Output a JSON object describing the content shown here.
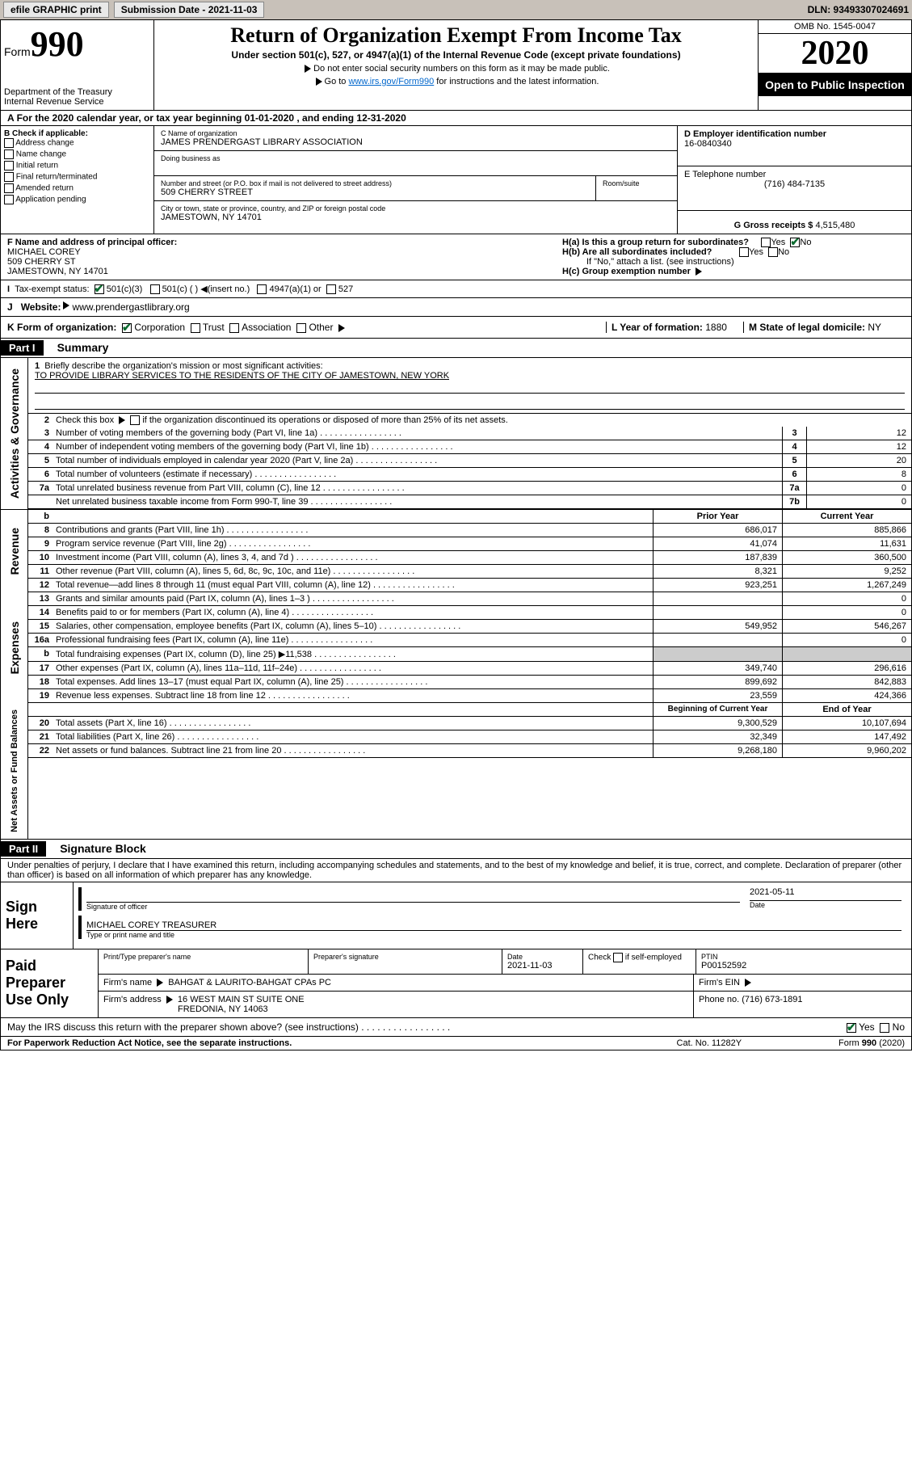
{
  "topbar": {
    "efile": "efile GRAPHIC print",
    "submission_label": "Submission Date - 2021-11-03",
    "dln": "DLN: 93493307024691"
  },
  "header": {
    "form_word": "Form",
    "form_num": "990",
    "dept": "Department of the Treasury\nInternal Revenue Service",
    "title": "Return of Organization Exempt From Income Tax",
    "subtitle": "Under section 501(c), 527, or 4947(a)(1) of the Internal Revenue Code (except private foundations)",
    "hint1": "Do not enter social security numbers on this form as it may be made public.",
    "hint2_pre": "Go to ",
    "hint2_link": "www.irs.gov/Form990",
    "hint2_post": " for instructions and the latest information.",
    "omb": "OMB No. 1545-0047",
    "year": "2020",
    "open": "Open to Public Inspection"
  },
  "row_a": "For the 2020 calendar year, or tax year beginning 01-01-2020    , and ending 12-31-2020",
  "b": {
    "lbl": "B Check if applicable:",
    "items": [
      "Address change",
      "Name change",
      "Initial return",
      "Final return/terminated",
      "Amended return",
      "Application pending"
    ]
  },
  "c": {
    "name_lbl": "C Name of organization",
    "name": "JAMES PRENDERGAST LIBRARY ASSOCIATION",
    "dba_lbl": "Doing business as",
    "street_lbl": "Number and street (or P.O. box if mail is not delivered to street address)",
    "street": "509 CHERRY STREET",
    "room_lbl": "Room/suite",
    "city_lbl": "City or town, state or province, country, and ZIP or foreign postal code",
    "city": "JAMESTOWN, NY  14701"
  },
  "d": {
    "lbl": "D Employer identification number",
    "val": "16-0840340"
  },
  "e": {
    "lbl": "E Telephone number",
    "val": "(716) 484-7135"
  },
  "g": {
    "lbl": "G Gross receipts $ ",
    "val": "4,515,480"
  },
  "f": {
    "lbl": "F  Name and address of principal officer:",
    "name": "MICHAEL COREY",
    "street": "509 CHERRY ST",
    "city": "JAMESTOWN, NY  14701"
  },
  "h": {
    "a": "H(a)  Is this a group return for subordinates?",
    "b": "H(b)  Are all subordinates included?",
    "note": "If \"No,\" attach a list. (see instructions)",
    "c": "H(c)  Group exemption number"
  },
  "i": {
    "lbl": "Tax-exempt status:",
    "c501c3": "501(c)(3)",
    "c501c": "501(c) (   )",
    "insert": "(insert no.)",
    "c4947": "4947(a)(1) or",
    "c527": "527"
  },
  "j": {
    "lbl": "Website:",
    "val": "www.prendergastlibrary.org"
  },
  "k": {
    "lbl": "K Form of organization:",
    "corp": "Corporation",
    "trust": "Trust",
    "assoc": "Association",
    "other": "Other"
  },
  "l": {
    "lbl": "L Year of formation: ",
    "val": "1880"
  },
  "m": {
    "lbl": "M State of legal domicile: ",
    "val": "NY"
  },
  "part1": {
    "hdr": "Part I",
    "title": "Summary",
    "q1": "Briefly describe the organization's mission or most significant activities:",
    "q1v": "TO PROVIDE LIBRARY SERVICES TO THE RESIDENTS OF THE CITY OF JAMESTOWN, NEW YORK",
    "q2": "Check this box      if the organization discontinued its operations or disposed of more than 25% of its net assets.",
    "lines_ag": [
      {
        "n": "3",
        "t": "Number of voting members of the governing body (Part VI, line 1a)",
        "b": "3",
        "v": "12"
      },
      {
        "n": "4",
        "t": "Number of independent voting members of the governing body (Part VI, line 1b)",
        "b": "4",
        "v": "12"
      },
      {
        "n": "5",
        "t": "Total number of individuals employed in calendar year 2020 (Part V, line 2a)",
        "b": "5",
        "v": "20"
      },
      {
        "n": "6",
        "t": "Total number of volunteers (estimate if necessary)",
        "b": "6",
        "v": "8"
      },
      {
        "n": "7a",
        "t": "Total unrelated business revenue from Part VIII, column (C), line 12",
        "b": "7a",
        "v": "0"
      },
      {
        "n": "",
        "t": "Net unrelated business taxable income from Form 990-T, line 39",
        "b": "7b",
        "v": "0"
      }
    ],
    "col_py": "Prior Year",
    "col_cy": "Current Year",
    "lines_rev": [
      {
        "n": "8",
        "t": "Contributions and grants (Part VIII, line 1h)",
        "py": "686,017",
        "cy": "885,866"
      },
      {
        "n": "9",
        "t": "Program service revenue (Part VIII, line 2g)",
        "py": "41,074",
        "cy": "11,631"
      },
      {
        "n": "10",
        "t": "Investment income (Part VIII, column (A), lines 3, 4, and 7d )",
        "py": "187,839",
        "cy": "360,500"
      },
      {
        "n": "11",
        "t": "Other revenue (Part VIII, column (A), lines 5, 6d, 8c, 9c, 10c, and 11e)",
        "py": "8,321",
        "cy": "9,252"
      },
      {
        "n": "12",
        "t": "Total revenue—add lines 8 through 11 (must equal Part VIII, column (A), line 12)",
        "py": "923,251",
        "cy": "1,267,249"
      }
    ],
    "lines_exp": [
      {
        "n": "13",
        "t": "Grants and similar amounts paid (Part IX, column (A), lines 1–3 )",
        "py": "",
        "cy": "0"
      },
      {
        "n": "14",
        "t": "Benefits paid to or for members (Part IX, column (A), line 4)",
        "py": "",
        "cy": "0"
      },
      {
        "n": "15",
        "t": "Salaries, other compensation, employee benefits (Part IX, column (A), lines 5–10)",
        "py": "549,952",
        "cy": "546,267"
      },
      {
        "n": "16a",
        "t": "Professional fundraising fees (Part IX, column (A), line 11e)",
        "py": "",
        "cy": "0"
      },
      {
        "n": "b",
        "t": "Total fundraising expenses (Part IX, column (D), line 25) ▶11,538",
        "py": "—",
        "cy": "—"
      },
      {
        "n": "17",
        "t": "Other expenses (Part IX, column (A), lines 11a–11d, 11f–24e)",
        "py": "349,740",
        "cy": "296,616"
      },
      {
        "n": "18",
        "t": "Total expenses. Add lines 13–17 (must equal Part IX, column (A), line 25)",
        "py": "899,692",
        "cy": "842,883"
      },
      {
        "n": "19",
        "t": "Revenue less expenses. Subtract line 18 from line 12",
        "py": "23,559",
        "cy": "424,366"
      }
    ],
    "col_boy": "Beginning of Current Year",
    "col_eoy": "End of Year",
    "lines_na": [
      {
        "n": "20",
        "t": "Total assets (Part X, line 16)",
        "py": "9,300,529",
        "cy": "10,107,694"
      },
      {
        "n": "21",
        "t": "Total liabilities (Part X, line 26)",
        "py": "32,349",
        "cy": "147,492"
      },
      {
        "n": "22",
        "t": "Net assets or fund balances. Subtract line 21 from line 20",
        "py": "9,268,180",
        "cy": "9,960,202"
      }
    ],
    "vtab_ag": "Activities & Governance",
    "vtab_rev": "Revenue",
    "vtab_exp": "Expenses",
    "vtab_na": "Net Assets or Fund Balances"
  },
  "part2": {
    "hdr": "Part II",
    "title": "Signature Block",
    "decl": "Under penalties of perjury, I declare that I have examined this return, including accompanying schedules and statements, and to the best of my knowledge and belief, it is true, correct, and complete. Declaration of preparer (other than officer) is based on all information of which preparer has any knowledge."
  },
  "sign": {
    "here": "Sign Here",
    "sig_lbl": "Signature of officer",
    "date_lbl": "Date",
    "date": "2021-05-11",
    "name": "MICHAEL COREY TREASURER",
    "name_lbl": "Type or print name and title"
  },
  "paid": {
    "hdr": "Paid Preparer Use Only",
    "pname_lbl": "Print/Type preparer's name",
    "psig_lbl": "Preparer's signature",
    "pdate_lbl": "Date",
    "pdate": "2021-11-03",
    "pself_lbl": "Check      if self-employed",
    "ptin_lbl": "PTIN",
    "ptin": "P00152592",
    "firm_lbl": "Firm's name    ",
    "firm": "BAHGAT & LAURITO-BAHGAT CPAs PC",
    "ein_lbl": "Firm's EIN",
    "addr_lbl": "Firm's address ",
    "addr1": "16 WEST MAIN ST SUITE ONE",
    "addr2": "FREDONIA, NY  14063",
    "phone_lbl": "Phone no. ",
    "phone": "(716) 673-1891"
  },
  "bottom": {
    "q": "May the IRS discuss this return with the preparer shown above? (see instructions)",
    "yes": "Yes",
    "no": "No"
  },
  "footer": {
    "l": "For Paperwork Reduction Act Notice, see the separate instructions.",
    "c": "Cat. No. 11282Y",
    "r": "Form 990 (2020)"
  },
  "yn": {
    "yes": "Yes",
    "no": "No"
  }
}
